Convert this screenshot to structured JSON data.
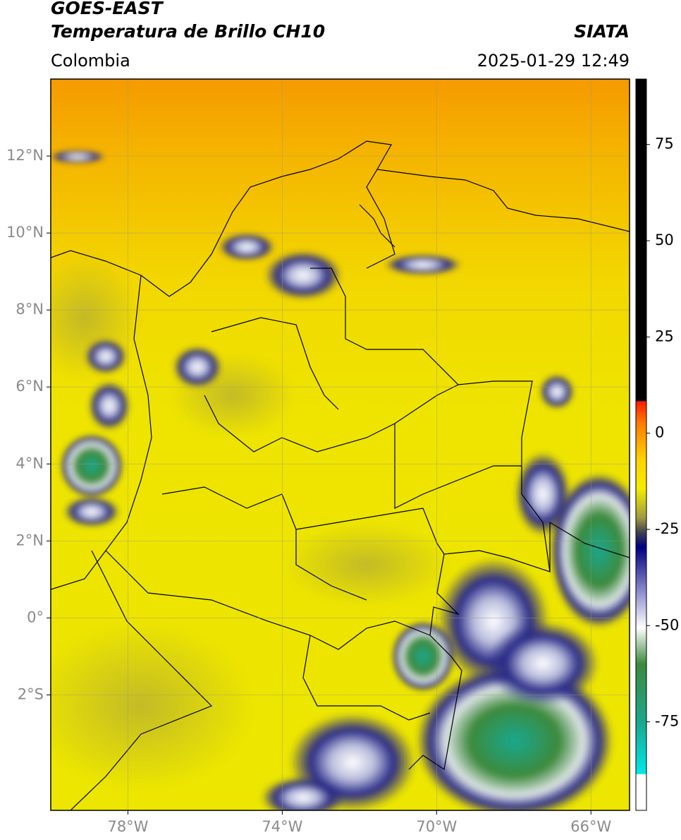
{
  "header": {
    "title": "GOES-EAST",
    "subtitle": "Temperatura de Brillo CH10",
    "source": "SIATA",
    "region": "Colombia",
    "datetime": "2025-01-29 12:49"
  },
  "map": {
    "xlim": [
      -80,
      -65
    ],
    "ylim": [
      -5,
      14
    ],
    "xticks": [
      {
        "value": -78,
        "label": "78°W"
      },
      {
        "value": -74,
        "label": "74°W"
      },
      {
        "value": -70,
        "label": "70°W"
      },
      {
        "value": -66,
        "label": "66°W"
      }
    ],
    "yticks": [
      {
        "value": 12,
        "label": "12°N"
      },
      {
        "value": 10,
        "label": "10°N"
      },
      {
        "value": 8,
        "label": "8°N"
      },
      {
        "value": 6,
        "label": "6°N"
      },
      {
        "value": 4,
        "label": "4°N"
      },
      {
        "value": 2,
        "label": "2°N"
      },
      {
        "value": 0,
        "label": "0°"
      },
      {
        "value": -2,
        "label": "2°S"
      }
    ],
    "grid": true
  },
  "colorbar": {
    "lim": [
      -98,
      92
    ],
    "ticks": [
      75,
      50,
      25,
      0,
      -25,
      -50,
      -75
    ]
  }
}
